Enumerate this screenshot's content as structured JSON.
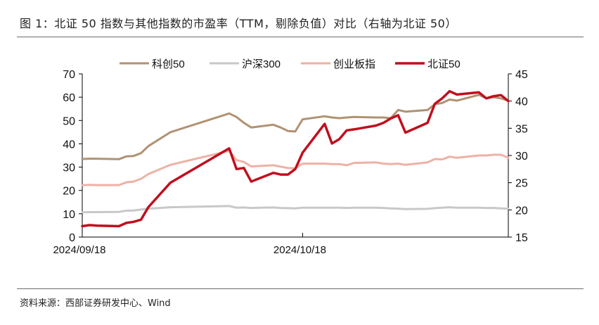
{
  "header": {
    "title": "图 1：北证 50 指数与其他指数的市盈率（TTM，剔除负值）对比（右轴为北证 50）"
  },
  "footer": {
    "source": "资料来源：西部证券研发中心、Wind"
  },
  "chart_data": {
    "type": "line",
    "x_tick_labels": [
      "2024/09/18",
      "2024/10/18"
    ],
    "x_tick_dates": [
      "2024-09-18",
      "2024-10-18"
    ],
    "x_range": [
      "2024-09-18",
      "2024-11-15"
    ],
    "left_axis": {
      "ylim": [
        0,
        70
      ],
      "ticks": [
        0,
        10,
        20,
        30,
        40,
        50,
        60,
        70
      ]
    },
    "right_axis": {
      "ylim": [
        15,
        45
      ],
      "ticks": [
        15,
        20,
        25,
        30,
        35,
        40,
        45
      ]
    },
    "grid": false,
    "legend_position": "top",
    "series": [
      {
        "name": "科创50",
        "axis": "left",
        "color": "#b09272",
        "width": 3,
        "points": [
          [
            "2024-09-18",
            33.5
          ],
          [
            "2024-09-19",
            33.6
          ],
          [
            "2024-09-20",
            33.6
          ],
          [
            "2024-09-23",
            33.4
          ],
          [
            "2024-09-24",
            34.6
          ],
          [
            "2024-09-25",
            34.8
          ],
          [
            "2024-09-26",
            36.0
          ],
          [
            "2024-09-27",
            39.0
          ],
          [
            "2024-09-30",
            45.0
          ],
          [
            "2024-10-08",
            53.0
          ],
          [
            "2024-10-09",
            51.5
          ],
          [
            "2024-10-10",
            49.0
          ],
          [
            "2024-10-11",
            47.0
          ],
          [
            "2024-10-14",
            48.2
          ],
          [
            "2024-10-15",
            47.0
          ],
          [
            "2024-10-16",
            45.5
          ],
          [
            "2024-10-17",
            45.3
          ],
          [
            "2024-10-18",
            50.5
          ],
          [
            "2024-10-21",
            51.8
          ],
          [
            "2024-10-22",
            51.3
          ],
          [
            "2024-10-23",
            51.0
          ],
          [
            "2024-10-24",
            51.3
          ],
          [
            "2024-10-25",
            51.5
          ],
          [
            "2024-10-28",
            51.3
          ],
          [
            "2024-10-29",
            51.3
          ],
          [
            "2024-10-30",
            51.0
          ],
          [
            "2024-10-31",
            54.5
          ],
          [
            "2024-11-01",
            53.8
          ],
          [
            "2024-11-04",
            54.5
          ],
          [
            "2024-11-05",
            57.0
          ],
          [
            "2024-11-06",
            57.5
          ],
          [
            "2024-11-07",
            59.0
          ],
          [
            "2024-11-08",
            58.5
          ],
          [
            "2024-11-11",
            61.0
          ],
          [
            "2024-11-12",
            59.5
          ],
          [
            "2024-11-13",
            60.0
          ],
          [
            "2024-11-14",
            59.5
          ],
          [
            "2024-11-15",
            58.5
          ]
        ]
      },
      {
        "name": "沪深300",
        "axis": "left",
        "color": "#c8c8c8",
        "width": 3,
        "points": [
          [
            "2024-09-18",
            10.6
          ],
          [
            "2024-09-19",
            10.7
          ],
          [
            "2024-09-20",
            10.7
          ],
          [
            "2024-09-23",
            10.8
          ],
          [
            "2024-09-24",
            11.3
          ],
          [
            "2024-09-25",
            11.4
          ],
          [
            "2024-09-26",
            11.8
          ],
          [
            "2024-09-27",
            12.2
          ],
          [
            "2024-09-30",
            12.8
          ],
          [
            "2024-10-08",
            13.3
          ],
          [
            "2024-10-09",
            12.6
          ],
          [
            "2024-10-10",
            12.7
          ],
          [
            "2024-10-11",
            12.5
          ],
          [
            "2024-10-14",
            12.7
          ],
          [
            "2024-10-15",
            12.5
          ],
          [
            "2024-10-16",
            12.4
          ],
          [
            "2024-10-17",
            12.3
          ],
          [
            "2024-10-18",
            12.6
          ],
          [
            "2024-10-21",
            12.6
          ],
          [
            "2024-10-22",
            12.6
          ],
          [
            "2024-10-23",
            12.6
          ],
          [
            "2024-10-24",
            12.5
          ],
          [
            "2024-10-25",
            12.6
          ],
          [
            "2024-10-28",
            12.6
          ],
          [
            "2024-10-29",
            12.5
          ],
          [
            "2024-10-30",
            12.3
          ],
          [
            "2024-10-31",
            12.2
          ],
          [
            "2024-11-01",
            12.0
          ],
          [
            "2024-11-04",
            12.1
          ],
          [
            "2024-11-05",
            12.4
          ],
          [
            "2024-11-06",
            12.6
          ],
          [
            "2024-11-07",
            12.8
          ],
          [
            "2024-11-08",
            12.6
          ],
          [
            "2024-11-11",
            12.6
          ],
          [
            "2024-11-12",
            12.5
          ],
          [
            "2024-11-13",
            12.5
          ],
          [
            "2024-11-14",
            12.3
          ],
          [
            "2024-11-15",
            12.2
          ]
        ]
      },
      {
        "name": "创业板指",
        "axis": "left",
        "color": "#eeb1a6",
        "width": 3,
        "points": [
          [
            "2024-09-18",
            22.2
          ],
          [
            "2024-09-19",
            22.4
          ],
          [
            "2024-09-20",
            22.3
          ],
          [
            "2024-09-23",
            22.3
          ],
          [
            "2024-09-24",
            23.5
          ],
          [
            "2024-09-25",
            23.8
          ],
          [
            "2024-09-26",
            25.0
          ],
          [
            "2024-09-27",
            27.0
          ],
          [
            "2024-09-30",
            31.0
          ],
          [
            "2024-10-08",
            37.0
          ],
          [
            "2024-10-09",
            33.0
          ],
          [
            "2024-10-10",
            32.2
          ],
          [
            "2024-10-11",
            30.3
          ],
          [
            "2024-10-14",
            30.8
          ],
          [
            "2024-10-15",
            30.2
          ],
          [
            "2024-10-16",
            29.6
          ],
          [
            "2024-10-17",
            29.5
          ],
          [
            "2024-10-18",
            31.5
          ],
          [
            "2024-10-21",
            31.5
          ],
          [
            "2024-10-22",
            31.3
          ],
          [
            "2024-10-23",
            31.3
          ],
          [
            "2024-10-24",
            30.8
          ],
          [
            "2024-10-25",
            31.8
          ],
          [
            "2024-10-28",
            32.0
          ],
          [
            "2024-10-29",
            31.5
          ],
          [
            "2024-10-30",
            31.3
          ],
          [
            "2024-10-31",
            31.5
          ],
          [
            "2024-11-01",
            31.0
          ],
          [
            "2024-11-04",
            32.0
          ],
          [
            "2024-11-05",
            33.5
          ],
          [
            "2024-11-06",
            33.3
          ],
          [
            "2024-11-07",
            34.5
          ],
          [
            "2024-11-08",
            34.0
          ],
          [
            "2024-11-11",
            35.0
          ],
          [
            "2024-11-12",
            35.0
          ],
          [
            "2024-11-13",
            35.3
          ],
          [
            "2024-11-14",
            35.3
          ],
          [
            "2024-11-15",
            34.0
          ]
        ]
      },
      {
        "name": "北证50",
        "axis": "right",
        "color": "#c00f1e",
        "width": 3.5,
        "points": [
          [
            "2024-09-18",
            17.0
          ],
          [
            "2024-09-19",
            17.2
          ],
          [
            "2024-09-20",
            17.1
          ],
          [
            "2024-09-23",
            17.0
          ],
          [
            "2024-09-24",
            17.6
          ],
          [
            "2024-09-25",
            17.8
          ],
          [
            "2024-09-26",
            18.2
          ],
          [
            "2024-09-27",
            20.5
          ],
          [
            "2024-09-30",
            25.0
          ],
          [
            "2024-10-08",
            31.3
          ],
          [
            "2024-10-09",
            27.5
          ],
          [
            "2024-10-10",
            27.7
          ],
          [
            "2024-10-11",
            25.2
          ],
          [
            "2024-10-14",
            26.8
          ],
          [
            "2024-10-15",
            26.5
          ],
          [
            "2024-10-16",
            26.5
          ],
          [
            "2024-10-17",
            27.5
          ],
          [
            "2024-10-18",
            30.5
          ],
          [
            "2024-10-21",
            35.8
          ],
          [
            "2024-10-22",
            32.2
          ],
          [
            "2024-10-23",
            33.0
          ],
          [
            "2024-10-24",
            34.6
          ],
          [
            "2024-10-25",
            34.8
          ],
          [
            "2024-10-28",
            35.5
          ],
          [
            "2024-10-29",
            36.0
          ],
          [
            "2024-10-30",
            36.8
          ],
          [
            "2024-10-31",
            37.4
          ],
          [
            "2024-11-01",
            34.2
          ],
          [
            "2024-11-04",
            36.0
          ],
          [
            "2024-11-05",
            39.5
          ],
          [
            "2024-11-06",
            40.5
          ],
          [
            "2024-11-07",
            41.8
          ],
          [
            "2024-11-08",
            41.2
          ],
          [
            "2024-11-11",
            41.6
          ],
          [
            "2024-11-12",
            40.5
          ],
          [
            "2024-11-13",
            40.9
          ],
          [
            "2024-11-14",
            41.1
          ],
          [
            "2024-11-15",
            40.0
          ]
        ]
      }
    ]
  }
}
